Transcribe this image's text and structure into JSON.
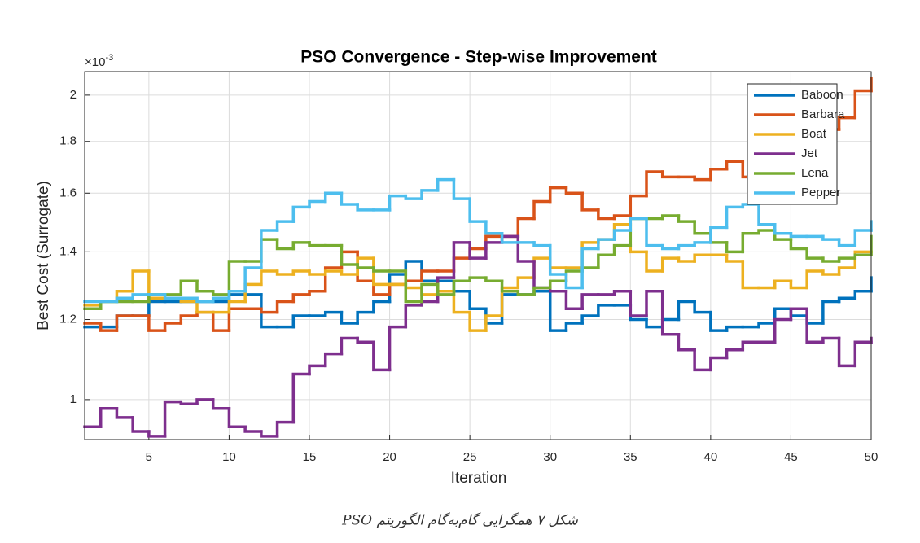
{
  "chart_data": {
    "type": "stairs",
    "title": "PSO Convergence - Step-wise Improvement",
    "xlabel": "Iteration",
    "ylabel": "Best Cost (Surrogate)",
    "y_multiplier": {
      "base": "×10",
      "exponent": "-3"
    },
    "caption": "شکل ۷ همگرایی گام‌به‌گام الگوریتم PSO",
    "x": [
      1,
      2,
      3,
      4,
      5,
      6,
      7,
      8,
      9,
      10,
      11,
      12,
      13,
      14,
      15,
      16,
      17,
      18,
      19,
      20,
      21,
      22,
      23,
      24,
      25,
      26,
      27,
      28,
      29,
      30,
      31,
      32,
      33,
      34,
      35,
      36,
      37,
      38,
      39,
      40,
      41,
      42,
      43,
      44,
      45,
      46,
      47,
      48,
      49,
      50
    ],
    "xlim": [
      1,
      50
    ],
    "xticks": [
      5,
      10,
      15,
      20,
      25,
      30,
      35,
      40,
      45,
      50
    ],
    "ylim": [
      0.913,
      2.11
    ],
    "yticks": [
      1,
      1.2,
      1.4,
      1.6,
      1.8,
      2
    ],
    "yscale": "log",
    "grid": true,
    "legend": "northeast",
    "series": [
      {
        "name": "Baboon",
        "color": "#0072BD",
        "values": [
          1.18,
          1.18,
          1.21,
          1.21,
          1.25,
          1.25,
          1.25,
          1.25,
          1.25,
          1.27,
          1.27,
          1.18,
          1.18,
          1.21,
          1.21,
          1.22,
          1.19,
          1.22,
          1.25,
          1.33,
          1.37,
          1.31,
          1.31,
          1.28,
          1.23,
          1.19,
          1.27,
          1.27,
          1.28,
          1.17,
          1.19,
          1.21,
          1.24,
          1.24,
          1.2,
          1.18,
          1.2,
          1.25,
          1.22,
          1.17,
          1.18,
          1.18,
          1.19,
          1.23,
          1.21,
          1.19,
          1.25,
          1.26,
          1.28,
          1.32
        ]
      },
      {
        "name": "Barbara",
        "color": "#D95319",
        "values": [
          1.19,
          1.17,
          1.21,
          1.21,
          1.17,
          1.19,
          1.21,
          1.22,
          1.17,
          1.23,
          1.23,
          1.22,
          1.25,
          1.27,
          1.28,
          1.35,
          1.4,
          1.31,
          1.27,
          1.3,
          1.31,
          1.34,
          1.34,
          1.38,
          1.41,
          1.45,
          1.45,
          1.51,
          1.57,
          1.62,
          1.6,
          1.54,
          1.51,
          1.52,
          1.59,
          1.68,
          1.66,
          1.66,
          1.65,
          1.69,
          1.72,
          1.66,
          1.64,
          1.66,
          1.7,
          1.8,
          1.85,
          1.9,
          2.02,
          2.08
        ]
      },
      {
        "name": "Boat",
        "color": "#EDB120",
        "values": [
          1.24,
          1.25,
          1.28,
          1.34,
          1.26,
          1.26,
          1.25,
          1.22,
          1.22,
          1.25,
          1.3,
          1.34,
          1.33,
          1.34,
          1.33,
          1.34,
          1.33,
          1.38,
          1.3,
          1.3,
          1.29,
          1.27,
          1.28,
          1.22,
          1.17,
          1.21,
          1.29,
          1.32,
          1.38,
          1.35,
          1.35,
          1.43,
          1.44,
          1.49,
          1.4,
          1.34,
          1.38,
          1.37,
          1.39,
          1.39,
          1.37,
          1.29,
          1.29,
          1.31,
          1.29,
          1.34,
          1.33,
          1.35,
          1.4,
          1.4
        ]
      },
      {
        "name": "Jet",
        "color": "#7E2F8E",
        "values": [
          0.94,
          0.98,
          0.96,
          0.93,
          0.92,
          0.995,
          0.99,
          1.0,
          0.98,
          0.94,
          0.93,
          0.92,
          0.95,
          1.06,
          1.08,
          1.11,
          1.15,
          1.14,
          1.07,
          1.18,
          1.24,
          1.25,
          1.32,
          1.43,
          1.38,
          1.43,
          1.45,
          1.37,
          1.29,
          1.28,
          1.23,
          1.27,
          1.27,
          1.28,
          1.21,
          1.28,
          1.16,
          1.12,
          1.07,
          1.1,
          1.12,
          1.14,
          1.14,
          1.2,
          1.23,
          1.14,
          1.15,
          1.08,
          1.14,
          1.15
        ]
      },
      {
        "name": "Lena",
        "color": "#77AC30",
        "values": [
          1.23,
          1.25,
          1.25,
          1.25,
          1.27,
          1.27,
          1.31,
          1.28,
          1.27,
          1.37,
          1.37,
          1.44,
          1.41,
          1.43,
          1.42,
          1.42,
          1.36,
          1.35,
          1.34,
          1.34,
          1.25,
          1.3,
          1.27,
          1.31,
          1.32,
          1.31,
          1.28,
          1.27,
          1.29,
          1.31,
          1.34,
          1.35,
          1.39,
          1.42,
          1.51,
          1.51,
          1.52,
          1.5,
          1.46,
          1.43,
          1.4,
          1.46,
          1.47,
          1.44,
          1.41,
          1.38,
          1.37,
          1.38,
          1.39,
          1.45
        ]
      },
      {
        "name": "Pepper",
        "color": "#4DBEEE",
        "values": [
          1.25,
          1.25,
          1.26,
          1.27,
          1.27,
          1.26,
          1.26,
          1.25,
          1.26,
          1.28,
          1.35,
          1.47,
          1.5,
          1.55,
          1.57,
          1.6,
          1.56,
          1.54,
          1.54,
          1.59,
          1.58,
          1.61,
          1.65,
          1.58,
          1.5,
          1.46,
          1.43,
          1.43,
          1.42,
          1.33,
          1.29,
          1.41,
          1.44,
          1.47,
          1.51,
          1.42,
          1.41,
          1.42,
          1.43,
          1.48,
          1.55,
          1.56,
          1.49,
          1.46,
          1.45,
          1.45,
          1.44,
          1.42,
          1.47,
          1.5
        ]
      }
    ]
  }
}
